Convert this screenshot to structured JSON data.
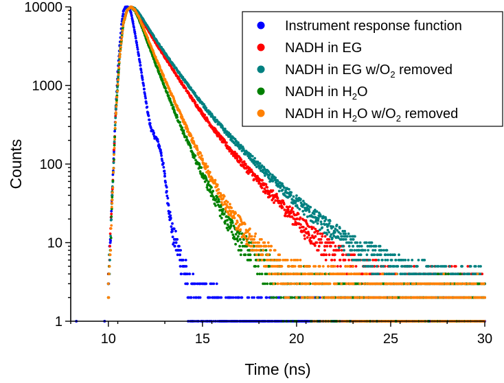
{
  "chart_data": {
    "type": "scatter",
    "xlabel": "Time (ns)",
    "ylabel": "Counts",
    "xlim": [
      8,
      30
    ],
    "ylim": [
      1,
      10000
    ],
    "yscale": "log",
    "x_ticks": [
      "10",
      "15",
      "20",
      "25",
      "30"
    ],
    "y_ticks": [
      "1",
      "10",
      "100",
      "1000",
      "10000"
    ],
    "legend_position": "top-right",
    "series": [
      {
        "name": "Instrument response function",
        "legend": {
          "main": "Instrument response function",
          "sub": "",
          "after": "",
          "sub2": "",
          "after2": ""
        },
        "color": "#0000ff",
        "points": [
          [
            8.3,
            1
          ],
          [
            9.8,
            1
          ],
          [
            10.0,
            3
          ],
          [
            10.1,
            10
          ],
          [
            10.2,
            40
          ],
          [
            10.3,
            150
          ],
          [
            10.4,
            550
          ],
          [
            10.5,
            1500
          ],
          [
            10.6,
            3200
          ],
          [
            10.7,
            6000
          ],
          [
            10.8,
            8800
          ],
          [
            10.9,
            9900
          ],
          [
            11.0,
            10000
          ],
          [
            11.1,
            9800
          ],
          [
            11.2,
            8500
          ],
          [
            11.3,
            6500
          ],
          [
            11.4,
            4800
          ],
          [
            11.5,
            3500
          ],
          [
            11.6,
            2500
          ],
          [
            11.7,
            1800
          ],
          [
            11.8,
            1250
          ],
          [
            11.9,
            900
          ],
          [
            12.0,
            620
          ],
          [
            12.1,
            450
          ],
          [
            12.2,
            330
          ],
          [
            12.3,
            270
          ],
          [
            12.4,
            240
          ],
          [
            12.5,
            220
          ],
          [
            12.6,
            200
          ],
          [
            12.7,
            170
          ],
          [
            12.8,
            140
          ],
          [
            12.9,
            100
          ],
          [
            13.0,
            70
          ],
          [
            13.1,
            45
          ],
          [
            13.2,
            30
          ],
          [
            13.3,
            20
          ],
          [
            13.4,
            14
          ],
          [
            13.5,
            11
          ],
          [
            13.6,
            10
          ],
          [
            13.7,
            8
          ],
          [
            13.8,
            7
          ],
          [
            13.9,
            6
          ],
          [
            14.0,
            5
          ],
          [
            14.1,
            4
          ],
          [
            14.2,
            3
          ],
          [
            14.4,
            2
          ],
          [
            14.8,
            2
          ],
          [
            15.3,
            2
          ],
          [
            15.8,
            2
          ],
          [
            14.5,
            1
          ],
          [
            16,
            1
          ],
          [
            18,
            1
          ],
          [
            20,
            1
          ],
          [
            22,
            1
          ],
          [
            24,
            1
          ],
          [
            26,
            1
          ],
          [
            28,
            1
          ],
          [
            30,
            1
          ]
        ]
      },
      {
        "name": "NADH in EG",
        "legend": {
          "main": "NADH in EG",
          "sub": "",
          "after": "",
          "sub2": "",
          "after2": ""
        },
        "color": "#ff0000",
        "points": [
          [
            10.0,
            3
          ],
          [
            10.2,
            40
          ],
          [
            10.4,
            500
          ],
          [
            10.6,
            2500
          ],
          [
            10.8,
            6500
          ],
          [
            11.0,
            9200
          ],
          [
            11.2,
            10000
          ],
          [
            11.4,
            9500
          ],
          [
            11.6,
            8200
          ],
          [
            11.8,
            6800
          ],
          [
            12.0,
            5600
          ],
          [
            12.5,
            3500
          ],
          [
            13.0,
            2300
          ],
          [
            13.5,
            1500
          ],
          [
            14.0,
            980
          ],
          [
            14.5,
            650
          ],
          [
            15.0,
            440
          ],
          [
            15.5,
            300
          ],
          [
            16.0,
            210
          ],
          [
            16.5,
            150
          ],
          [
            17.0,
            110
          ],
          [
            17.5,
            82
          ],
          [
            18.0,
            60
          ],
          [
            18.5,
            45
          ],
          [
            19.0,
            34
          ],
          [
            19.5,
            26
          ],
          [
            20.0,
            20
          ],
          [
            20.5,
            15
          ],
          [
            21.0,
            12
          ],
          [
            21.5,
            9
          ],
          [
            22.0,
            7
          ],
          [
            22.5,
            6
          ],
          [
            23.0,
            5
          ],
          [
            23.5,
            4
          ],
          [
            24.0,
            4
          ],
          [
            25.0,
            3
          ],
          [
            26.0,
            3
          ],
          [
            27.0,
            3
          ],
          [
            28.0,
            3
          ],
          [
            29.0,
            3
          ],
          [
            30.0,
            3
          ]
        ]
      },
      {
        "name": "NADH in EG w/O2 removed",
        "legend": {
          "main": "NADH in EG w/O",
          "sub": "2",
          "after": " removed",
          "sub2": "",
          "after2": ""
        },
        "color": "#008080",
        "points": [
          [
            10.0,
            3
          ],
          [
            10.2,
            40
          ],
          [
            10.4,
            500
          ],
          [
            10.6,
            2500
          ],
          [
            10.8,
            6500
          ],
          [
            11.0,
            9200
          ],
          [
            11.2,
            10000
          ],
          [
            11.4,
            9600
          ],
          [
            11.6,
            8500
          ],
          [
            11.8,
            7200
          ],
          [
            12.0,
            6000
          ],
          [
            12.5,
            3900
          ],
          [
            13.0,
            2600
          ],
          [
            13.5,
            1750
          ],
          [
            14.0,
            1200
          ],
          [
            14.5,
            830
          ],
          [
            15.0,
            580
          ],
          [
            15.5,
            410
          ],
          [
            16.0,
            300
          ],
          [
            16.5,
            220
          ],
          [
            17.0,
            165
          ],
          [
            17.5,
            125
          ],
          [
            18.0,
            95
          ],
          [
            18.5,
            72
          ],
          [
            19.0,
            55
          ],
          [
            19.5,
            43
          ],
          [
            20.0,
            34
          ],
          [
            20.5,
            27
          ],
          [
            21.0,
            21
          ],
          [
            21.5,
            17
          ],
          [
            22.0,
            14
          ],
          [
            22.5,
            11
          ],
          [
            23.0,
            9
          ],
          [
            23.5,
            8
          ],
          [
            24.0,
            7
          ],
          [
            25.0,
            5
          ],
          [
            26.0,
            4
          ],
          [
            27.0,
            4
          ],
          [
            28.0,
            3
          ],
          [
            29.0,
            3
          ],
          [
            30.0,
            3
          ]
        ]
      },
      {
        "name": "NADH in H2O",
        "legend": {
          "main": "NADH in H",
          "sub": "2",
          "after": "O",
          "sub2": "",
          "after2": ""
        },
        "color": "#008000",
        "points": [
          [
            10.0,
            2
          ],
          [
            10.2,
            35
          ],
          [
            10.4,
            450
          ],
          [
            10.6,
            2300
          ],
          [
            10.8,
            6200
          ],
          [
            11.0,
            9100
          ],
          [
            11.2,
            10000
          ],
          [
            11.4,
            9000
          ],
          [
            11.6,
            7200
          ],
          [
            11.8,
            5400
          ],
          [
            12.0,
            4000
          ],
          [
            12.5,
            1900
          ],
          [
            13.0,
            950
          ],
          [
            13.5,
            480
          ],
          [
            14.0,
            250
          ],
          [
            14.5,
            135
          ],
          [
            15.0,
            75
          ],
          [
            15.5,
            43
          ],
          [
            16.0,
            26
          ],
          [
            16.5,
            16
          ],
          [
            17.0,
            11
          ],
          [
            17.5,
            8
          ],
          [
            18.0,
            6
          ],
          [
            18.5,
            5
          ],
          [
            19.0,
            4
          ],
          [
            19.5,
            3
          ],
          [
            20.0,
            3
          ],
          [
            21.0,
            3
          ],
          [
            22.0,
            2
          ],
          [
            23.0,
            2
          ],
          [
            24.0,
            2
          ],
          [
            25.0,
            2
          ],
          [
            26.0,
            2
          ],
          [
            27.0,
            2
          ],
          [
            28.0,
            2
          ],
          [
            29.0,
            2
          ],
          [
            30.0,
            2
          ]
        ]
      },
      {
        "name": "NADH in H2O w/O2 removed",
        "legend": {
          "main": "NADH in H",
          "sub": "2",
          "after": "O w/O",
          "sub2": "2",
          "after2": " removed"
        },
        "color": "#ff8000",
        "points": [
          [
            10.0,
            2
          ],
          [
            10.2,
            35
          ],
          [
            10.4,
            450
          ],
          [
            10.6,
            2300
          ],
          [
            10.8,
            6200
          ],
          [
            11.0,
            9100
          ],
          [
            11.2,
            10000
          ],
          [
            11.4,
            9200
          ],
          [
            11.6,
            7600
          ],
          [
            11.8,
            5900
          ],
          [
            12.0,
            4500
          ],
          [
            12.5,
            2300
          ],
          [
            13.0,
            1200
          ],
          [
            13.5,
            640
          ],
          [
            14.0,
            350
          ],
          [
            14.5,
            195
          ],
          [
            15.0,
            112
          ],
          [
            15.5,
            66
          ],
          [
            16.0,
            40
          ],
          [
            16.5,
            25
          ],
          [
            17.0,
            17
          ],
          [
            17.5,
            12
          ],
          [
            18.0,
            9
          ],
          [
            18.5,
            7
          ],
          [
            19.0,
            5
          ],
          [
            19.5,
            4
          ],
          [
            20.0,
            4
          ],
          [
            21.0,
            3
          ],
          [
            22.0,
            3
          ],
          [
            23.0,
            3
          ],
          [
            24.0,
            2
          ],
          [
            25.0,
            2
          ],
          [
            26.0,
            2
          ],
          [
            27.0,
            2
          ],
          [
            28.0,
            2
          ],
          [
            29.0,
            2
          ],
          [
            30.0,
            2
          ]
        ]
      }
    ]
  }
}
